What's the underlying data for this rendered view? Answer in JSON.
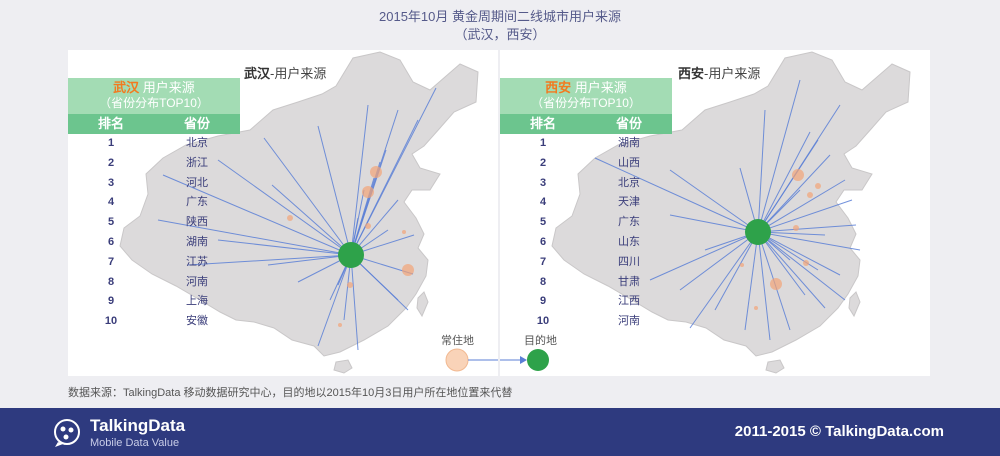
{
  "title": {
    "line1": "2015年10月 黄金周期间二线城市用户来源",
    "line2": "（武汉，西安）"
  },
  "chart_data": [
    {
      "type": "table",
      "map_title_city": "武汉",
      "map_title_suffix": "-用户来源",
      "table_title_city": "武汉",
      "table_title_suffix": " 用户来源",
      "table_subtitle": "（省份分布TOP10）",
      "columns": [
        "排名",
        "省份"
      ],
      "rows": [
        {
          "rank": "1",
          "province": "北京"
        },
        {
          "rank": "2",
          "province": "浙江"
        },
        {
          "rank": "3",
          "province": "河北"
        },
        {
          "rank": "4",
          "province": "广东"
        },
        {
          "rank": "5",
          "province": "陕西"
        },
        {
          "rank": "6",
          "province": "湖南"
        },
        {
          "rank": "7",
          "province": "江苏"
        },
        {
          "rank": "8",
          "province": "河南"
        },
        {
          "rank": "9",
          "province": "上海"
        },
        {
          "rank": "10",
          "province": "安徽"
        }
      ]
    },
    {
      "type": "table",
      "map_title_city": "西安",
      "map_title_suffix": "-用户来源",
      "table_title_city": "西安",
      "table_title_suffix": " 用户来源",
      "table_subtitle": "（省份分布TOP10）",
      "columns": [
        "排名",
        "省份"
      ],
      "rows": [
        {
          "rank": "1",
          "province": "湖南"
        },
        {
          "rank": "2",
          "province": "山西"
        },
        {
          "rank": "3",
          "province": "北京"
        },
        {
          "rank": "4",
          "province": "天津"
        },
        {
          "rank": "5",
          "province": "广东"
        },
        {
          "rank": "6",
          "province": "山东"
        },
        {
          "rank": "7",
          "province": "四川"
        },
        {
          "rank": "8",
          "province": "甘肃"
        },
        {
          "rank": "9",
          "province": "江西"
        },
        {
          "rank": "10",
          "province": "河南"
        }
      ]
    }
  ],
  "legend": {
    "origin_label": "常住地",
    "destination_label": "目的地",
    "origin_color": "#f9d3b8",
    "destination_color": "#2ea24a"
  },
  "colors": {
    "flow_line": "#5b7fd6",
    "map_fill": "#dcdadb",
    "header_green": "#a3dcb4",
    "column_green": "#6cc58e",
    "city_orange": "#f27a1f",
    "footer_bg": "#2e3a7f"
  },
  "source_note": "数据来源：TalkingData 移动数据研究中心，目的地以2015年10月3日用户所在地位置来代替",
  "footer": {
    "brand": "TalkingData",
    "slogan": "Mobile Data Value",
    "copyright": "2011-2015 © TalkingData.com"
  }
}
